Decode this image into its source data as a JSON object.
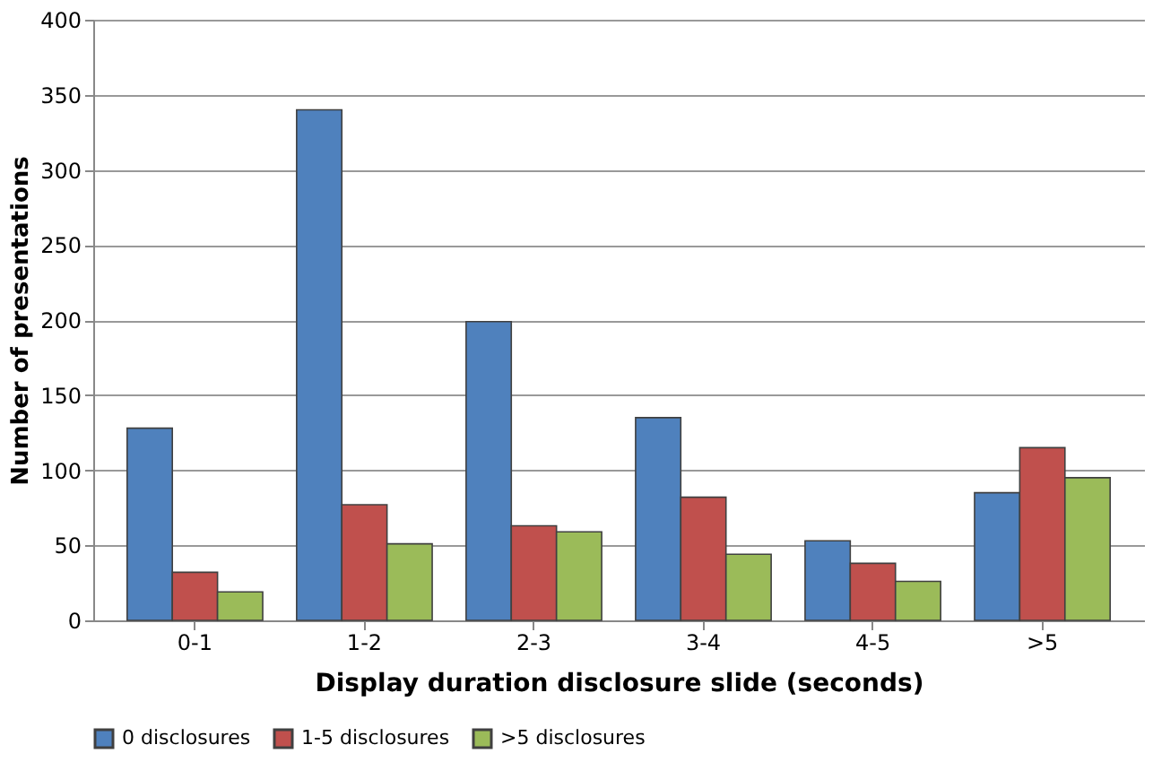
{
  "chart_data": {
    "type": "bar",
    "xlabel": "Display duration disclosure slide (seconds)",
    "ylabel": "Number of presentations",
    "categories": [
      "0-1",
      "1-2",
      "2-3",
      "3-4",
      "4-5",
      ">5"
    ],
    "series": [
      {
        "name": "0 disclosures",
        "color": "#4f81bd",
        "values": [
          128,
          340,
          199,
          135,
          53,
          85
        ]
      },
      {
        "name": "1-5 disclosures",
        "color": "#c0504d",
        "values": [
          32,
          77,
          63,
          82,
          38,
          115
        ]
      },
      {
        "name": ">5 disclosures",
        "color": "#9bbb59",
        "values": [
          19,
          51,
          59,
          44,
          26,
          95
        ]
      }
    ],
    "ylim": [
      0,
      400
    ],
    "yticks": [
      0,
      50,
      100,
      150,
      200,
      250,
      300,
      350,
      400
    ],
    "grid": "y",
    "legend": "bottom"
  }
}
